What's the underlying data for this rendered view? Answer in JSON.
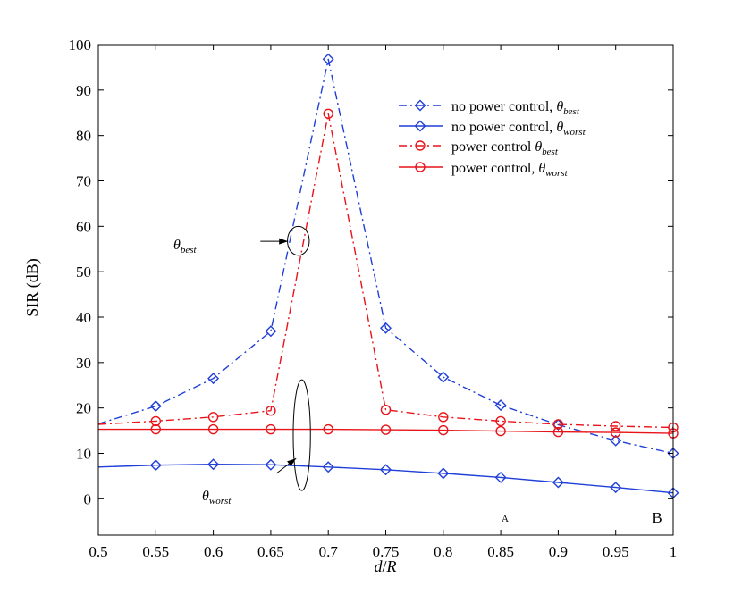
{
  "chart_data": {
    "type": "line",
    "xlabel_var": "d",
    "xlabel_sep": "/",
    "xlabel_var2": "R",
    "ylabel": "SIR (dB)",
    "xlim": [
      0.5,
      1
    ],
    "ylim": [
      -8,
      100
    ],
    "x_ticks": [
      "0.5",
      "0.55",
      "0.6",
      "0.65",
      "0.7",
      "0.75",
      "0.8",
      "0.85",
      "0.9",
      "0.95",
      "1"
    ],
    "y_ticks": [
      "0",
      "10",
      "20",
      "30",
      "40",
      "50",
      "60",
      "70",
      "80",
      "90",
      "100"
    ],
    "x_tick_values": [
      0.5,
      0.55,
      0.6,
      0.65,
      0.7,
      0.75,
      0.8,
      0.85,
      0.9,
      0.95,
      1.0
    ],
    "y_tick_values": [
      0,
      10,
      20,
      30,
      40,
      50,
      60,
      70,
      80,
      90,
      100
    ],
    "series": [
      {
        "name_main": "no power control, ",
        "name_theta": "θ",
        "name_sub": "best",
        "color": "#1f3fd8",
        "style": "dashdot",
        "marker": "diamond",
        "x": [
          0.5,
          0.55,
          0.6,
          0.65,
          0.7,
          0.75,
          0.8,
          0.85,
          0.9,
          0.95,
          1.0
        ],
        "values": [
          16.5,
          20.4,
          26.5,
          36.9,
          96.8,
          37.6,
          26.8,
          20.6,
          16.3,
          12.8,
          10.0
        ],
        "marker_x": [
          0.55,
          0.6,
          0.65,
          0.7,
          0.75,
          0.8,
          0.85,
          0.9,
          0.95,
          1.0
        ]
      },
      {
        "name_main": "no power control, ",
        "name_theta": "θ",
        "name_sub": "worst",
        "color": "#1f3fd8",
        "style": "solid",
        "marker": "diamond",
        "x": [
          0.5,
          0.55,
          0.6,
          0.65,
          0.7,
          0.75,
          0.8,
          0.85,
          0.9,
          0.95,
          1.0
        ],
        "values": [
          7.0,
          7.4,
          7.6,
          7.5,
          7.0,
          6.4,
          5.6,
          4.7,
          3.6,
          2.5,
          1.3
        ],
        "marker_x": [
          0.55,
          0.6,
          0.65,
          0.7,
          0.75,
          0.8,
          0.85,
          0.9,
          0.95,
          1.0
        ]
      },
      {
        "name_main": "power control ",
        "name_theta": "θ",
        "name_sub": "best",
        "color": "#e8141a",
        "style": "dashdot",
        "marker": "circle",
        "x": [
          0.5,
          0.55,
          0.6,
          0.65,
          0.7,
          0.75,
          0.8,
          0.85,
          0.9,
          0.95,
          1.0
        ],
        "values": [
          16.4,
          17.1,
          18.0,
          19.4,
          84.8,
          19.6,
          18.0,
          17.1,
          16.4,
          16.0,
          15.7
        ],
        "marker_x": [
          0.55,
          0.6,
          0.65,
          0.7,
          0.75,
          0.8,
          0.85,
          0.9,
          0.95,
          1.0
        ]
      },
      {
        "name_main": "power control, ",
        "name_theta": "θ",
        "name_sub": "worst",
        "color": "#e8141a",
        "style": "solid",
        "marker": "circle",
        "x": [
          0.5,
          0.55,
          0.6,
          0.65,
          0.7,
          0.75,
          0.8,
          0.85,
          0.9,
          0.95,
          1.0
        ],
        "values": [
          15.3,
          15.3,
          15.3,
          15.3,
          15.3,
          15.2,
          15.1,
          14.9,
          14.7,
          14.6,
          14.4
        ],
        "marker_x": [
          0.55,
          0.6,
          0.65,
          0.7,
          0.75,
          0.8,
          0.85,
          0.9,
          0.95,
          1.0
        ]
      }
    ],
    "annotations": {
      "best": {
        "theta": "θ",
        "sub": "best"
      },
      "worst": {
        "theta": "θ",
        "sub": "worst"
      },
      "best_ellipse_center": [
        0.674,
        56.8
      ],
      "best_ellipse_radii": [
        0.0095,
        3.2
      ],
      "best_arrow_from": [
        0.641,
        56.7
      ],
      "best_arrow_to": [
        0.665,
        56.7
      ],
      "worst_ellipse_center": [
        0.677,
        14.0
      ],
      "worst_ellipse_radii": [
        0.0075,
        12.2
      ],
      "worst_arrow_from": [
        0.655,
        5.6
      ],
      "worst_arrow_to": [
        0.672,
        8.9
      ],
      "corner_a": "A",
      "corner_b": "B"
    },
    "legend_position": "top-right",
    "grid": false
  }
}
